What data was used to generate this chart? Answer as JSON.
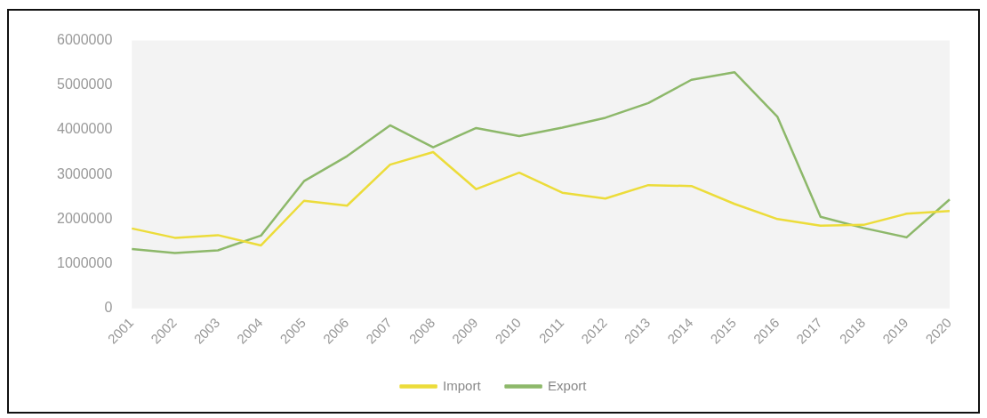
{
  "chart_data": {
    "type": "line",
    "categories": [
      "2001",
      "2002",
      "2003",
      "2004",
      "2005",
      "2006",
      "2007",
      "2008",
      "2009",
      "2010",
      "2011",
      "2012",
      "2013",
      "2014",
      "2015",
      "2016",
      "2017",
      "2018",
      "2019",
      "2020"
    ],
    "series": [
      {
        "name": "Import",
        "color": "#ecdc3a",
        "values": [
          1790000,
          1580000,
          1640000,
          1410000,
          2410000,
          2300000,
          3220000,
          3500000,
          2670000,
          3040000,
          2590000,
          2460000,
          2760000,
          2740000,
          2340000,
          2000000,
          1850000,
          1870000,
          2120000,
          2180000
        ]
      },
      {
        "name": "Export",
        "color": "#8db86a",
        "values": [
          1330000,
          1240000,
          1300000,
          1630000,
          2850000,
          3410000,
          4100000,
          3610000,
          4040000,
          3860000,
          4050000,
          4270000,
          4600000,
          5120000,
          5290000,
          4290000,
          2050000,
          1800000,
          1590000,
          2440000
        ]
      }
    ],
    "ylim": [
      0,
      6000000
    ],
    "yticks": [
      0,
      1000000,
      2000000,
      3000000,
      4000000,
      5000000,
      6000000
    ],
    "grid": false,
    "legend": "bottom",
    "marker": "none",
    "line_style": "solid"
  }
}
